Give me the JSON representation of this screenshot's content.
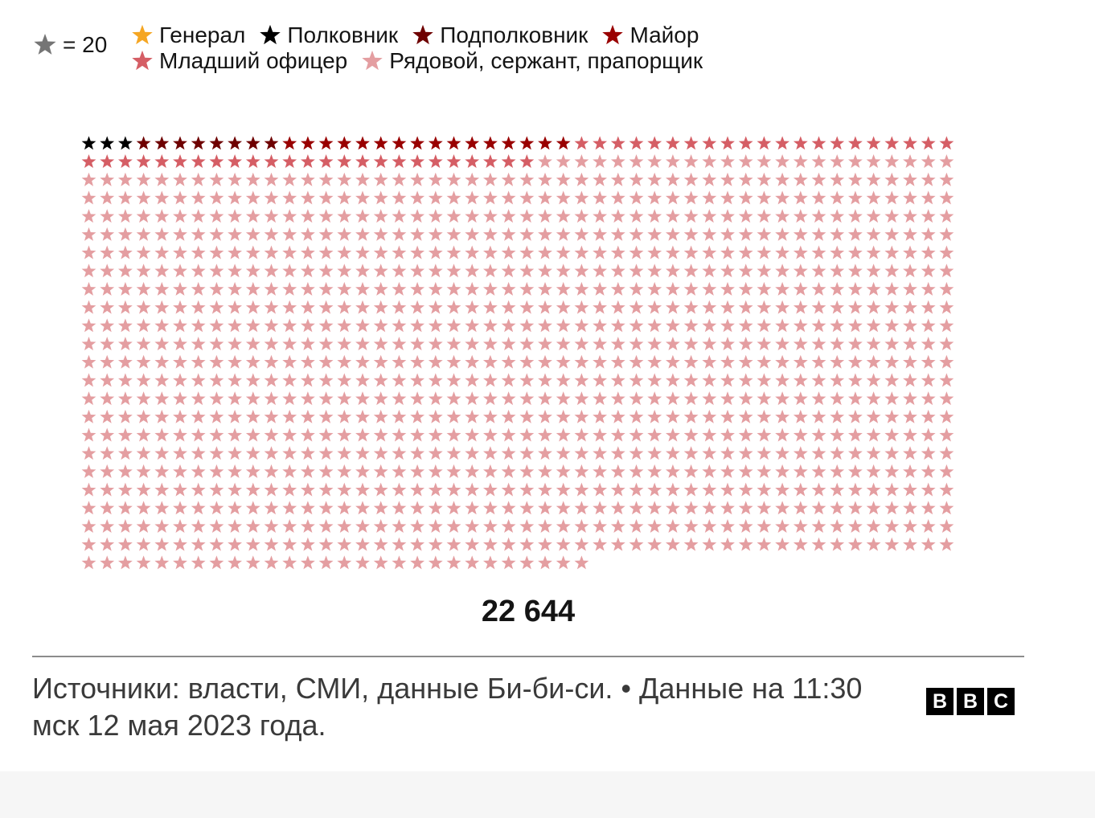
{
  "scale_key": {
    "label": "= 20",
    "star_color": "#757575",
    "icon": "star-icon"
  },
  "legend": {
    "items": [
      {
        "label": "Генерал",
        "color": "#f5a623"
      },
      {
        "label": "Полковник",
        "color": "#000000"
      },
      {
        "label": "Подполковник",
        "color": "#6e0000"
      },
      {
        "label": "Майор",
        "color": "#990000"
      },
      {
        "label": "Младший офицер",
        "color": "#d55e65"
      },
      {
        "label": "Рядовой, сержант, прапорщик",
        "color": "#e49ea1"
      }
    ]
  },
  "chart_data": {
    "type": "pictogram",
    "unit_value": 20,
    "columns": 48,
    "categories": [
      "Генерал",
      "Полковник",
      "Подполковник",
      "Майор",
      "Младший офицер",
      "Рядовой, сержант, прапорщик"
    ],
    "icon_counts": [
      0.3,
      3,
      8,
      15.5,
      46.5,
      1058.9
    ],
    "colors": [
      "#f5a623",
      "#000000",
      "#6e0000",
      "#990000",
      "#d55e65",
      "#e49ea1"
    ],
    "total": 22644
  },
  "total_label": "22 644",
  "source": "Источники: власти, СМИ, данные Би-би-си. • Данные на 11:30 мск 12 мая 2023 года.",
  "logo": {
    "letters": [
      "B",
      "B",
      "C"
    ]
  }
}
